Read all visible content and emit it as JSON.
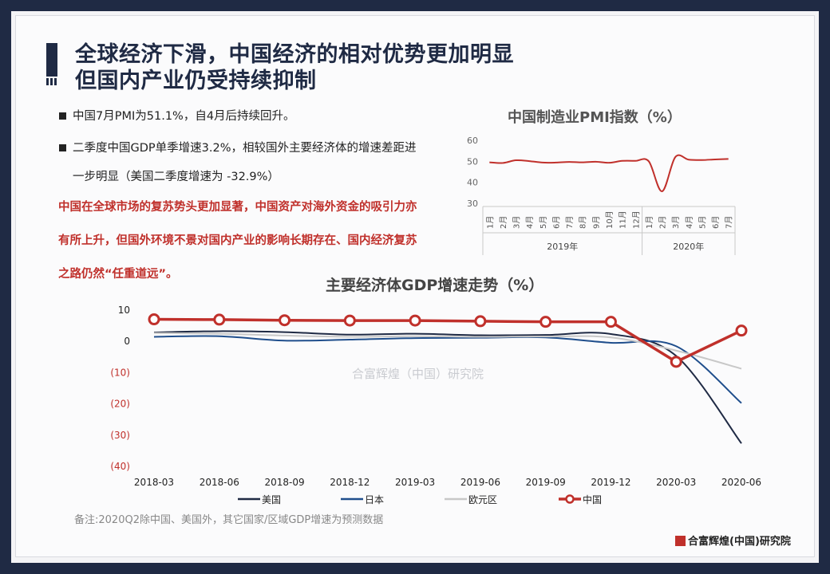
{
  "slide": {
    "title_line1": "全球经济下滑，中国经济的相对优势更加明显",
    "title_line2": "但国内产业仍受持续抑制",
    "bullets": [
      "中国7月PMI为51.1%，自4月后持续回升。",
      "二季度中国GDP单季增速3.2%，相较国外主要经济体的增速差距进"
    ],
    "bullet2_cont": "一步明显（美国二季度增速为 -32.9%）",
    "highlight_lines": [
      "中国在全球市场的复苏势头更加显著，中国资产对海外资金的吸引力亦",
      "有所上升，但国外环境不景对国内产业的影响长期存在、国内经济复苏",
      "之路仍然“任重道远”。"
    ],
    "note": "备注:2020Q2除中国、美国外，其它国家/区域GDP增速为预测数据",
    "brand": "合富辉煌(中国)研究院",
    "watermark": "合富辉煌（中国）研究院"
  },
  "colors": {
    "navy": "#1f2a44",
    "red": "#c0302b"
  },
  "chart_data": [
    {
      "type": "line",
      "title": "中国制造业PMI指数（%）",
      "ylim": [
        30,
        60
      ],
      "yticks": [
        "60",
        "50",
        "40",
        "30"
      ],
      "categories": [
        "1月",
        "2月",
        "3月",
        "4月",
        "5月",
        "6月",
        "7月",
        "8月",
        "9月",
        "10月",
        "11月",
        "12月",
        "1月",
        "2月",
        "3月",
        "4月",
        "5月",
        "6月",
        "7月"
      ],
      "groups": [
        {
          "label": "2019年",
          "count": 12
        },
        {
          "label": "2020年",
          "count": 7
        }
      ],
      "series": [
        {
          "values": [
            49.5,
            49.2,
            50.5,
            50.1,
            49.4,
            49.4,
            49.7,
            49.5,
            49.8,
            49.3,
            50.2,
            50.2,
            50.0,
            35.7,
            52.0,
            50.8,
            50.6,
            50.9,
            51.1
          ]
        }
      ],
      "color": "#c0302b"
    },
    {
      "type": "line",
      "title": "主要经济体GDP增速走势（%）",
      "ylim": [
        -40,
        10
      ],
      "yticks": [
        "10",
        "0",
        "(10)",
        "(20)",
        "(30)",
        "(40)"
      ],
      "categories": [
        "2018-03",
        "2018-06",
        "2018-09",
        "2018-12",
        "2019-03",
        "2019-06",
        "2019-09",
        "2019-12",
        "2020-03",
        "2020-06"
      ],
      "series": [
        {
          "name": "美国",
          "color": "#1f2a44",
          "values": [
            2.6,
            3.0,
            2.7,
            1.9,
            2.2,
            1.7,
            1.8,
            2.1,
            -4.9,
            -32.9
          ]
        },
        {
          "name": "日本",
          "color": "#1f4e8c",
          "values": [
            1.2,
            1.4,
            0.0,
            0.3,
            0.8,
            0.9,
            1.0,
            -0.7,
            -1.8,
            -20.0
          ]
        },
        {
          "name": "欧元区",
          "color": "#c8c8c8",
          "values": [
            2.4,
            2.2,
            1.6,
            1.2,
            1.4,
            1.2,
            1.3,
            1.0,
            -3.2,
            -9.0
          ]
        },
        {
          "name": "中国",
          "color": "#c0302b",
          "values": [
            6.8,
            6.7,
            6.5,
            6.4,
            6.4,
            6.2,
            6.0,
            6.0,
            -6.8,
            3.2
          ]
        }
      ]
    }
  ]
}
